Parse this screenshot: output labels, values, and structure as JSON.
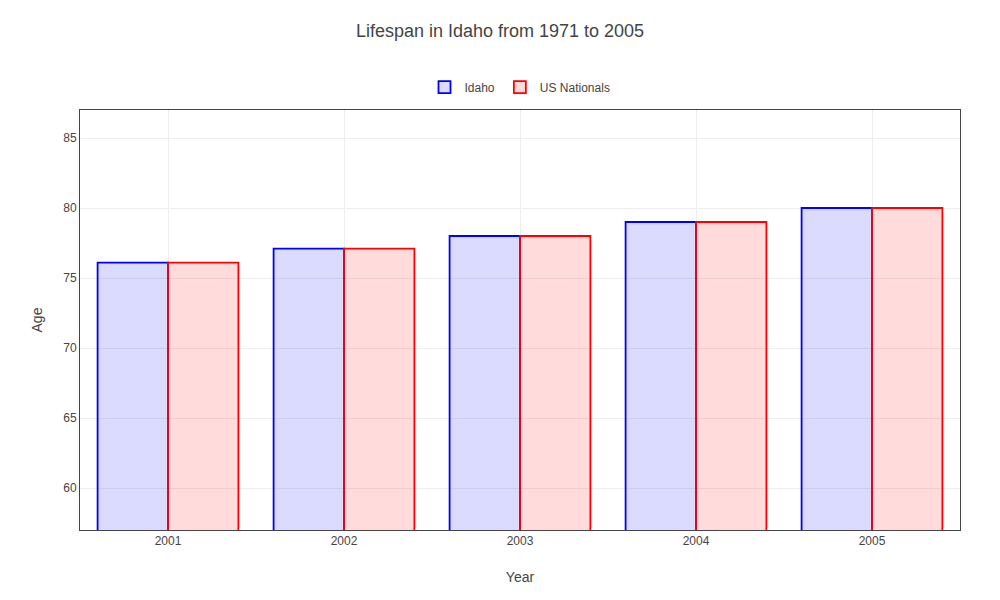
{
  "chart_data": {
    "type": "bar",
    "title": "Lifespan in Idaho from 1971 to 2005",
    "xlabel": "Year",
    "ylabel": "Age",
    "categories": [
      "2001",
      "2002",
      "2003",
      "2004",
      "2005"
    ],
    "series": [
      {
        "name": "Idaho",
        "color": "#0000ff",
        "values": [
          76.1,
          77.1,
          78.0,
          79.0,
          80.0
        ]
      },
      {
        "name": "US Nationals",
        "color": "#ff0000",
        "values": [
          76.1,
          77.1,
          78.0,
          79.0,
          80.0
        ]
      }
    ],
    "ylim": [
      57,
      87
    ],
    "yticks": [
      60,
      65,
      70,
      75,
      80,
      85
    ],
    "grid": true,
    "legend": "top"
  }
}
